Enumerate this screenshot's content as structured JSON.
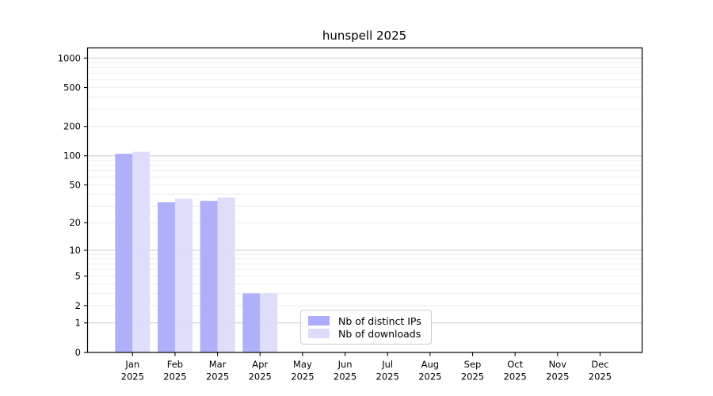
{
  "window": {
    "background": "#ffffff"
  },
  "chart_data": {
    "type": "bar",
    "title": "hunspell 2025",
    "categories": [
      "Jan",
      "Feb",
      "Mar",
      "Apr",
      "May",
      "Jun",
      "Jul",
      "Aug",
      "Sep",
      "Oct",
      "Nov",
      "Dec"
    ],
    "category_year": "2025",
    "series": [
      {
        "name": "Nb of distinct IPs",
        "key": "distinct-ips",
        "color": "#acacfa",
        "values": [
          105,
          33,
          34,
          3,
          0,
          0,
          0,
          0,
          0,
          0,
          0,
          0
        ]
      },
      {
        "name": "Nb of downloads",
        "key": "downloads",
        "color": "#dcdcfa",
        "values": [
          110,
          36,
          37,
          3,
          0,
          0,
          0,
          0,
          0,
          0,
          0,
          0
        ]
      }
    ],
    "xlabel": "",
    "ylabel": "",
    "y_scale": "log10(1+x)",
    "y_ticks": [
      0,
      1,
      2,
      5,
      10,
      20,
      50,
      100,
      200,
      500,
      1000
    ],
    "ylim": [
      0,
      1000
    ],
    "grid": true,
    "legend_position": "lower-center"
  },
  "colors": {
    "grid_major": "#c8c8c8",
    "grid_minor": "#eeeeee",
    "axis": "#000000",
    "text": "#000000",
    "legend_border": "#cccccc",
    "legend_background": "#ffffff"
  }
}
